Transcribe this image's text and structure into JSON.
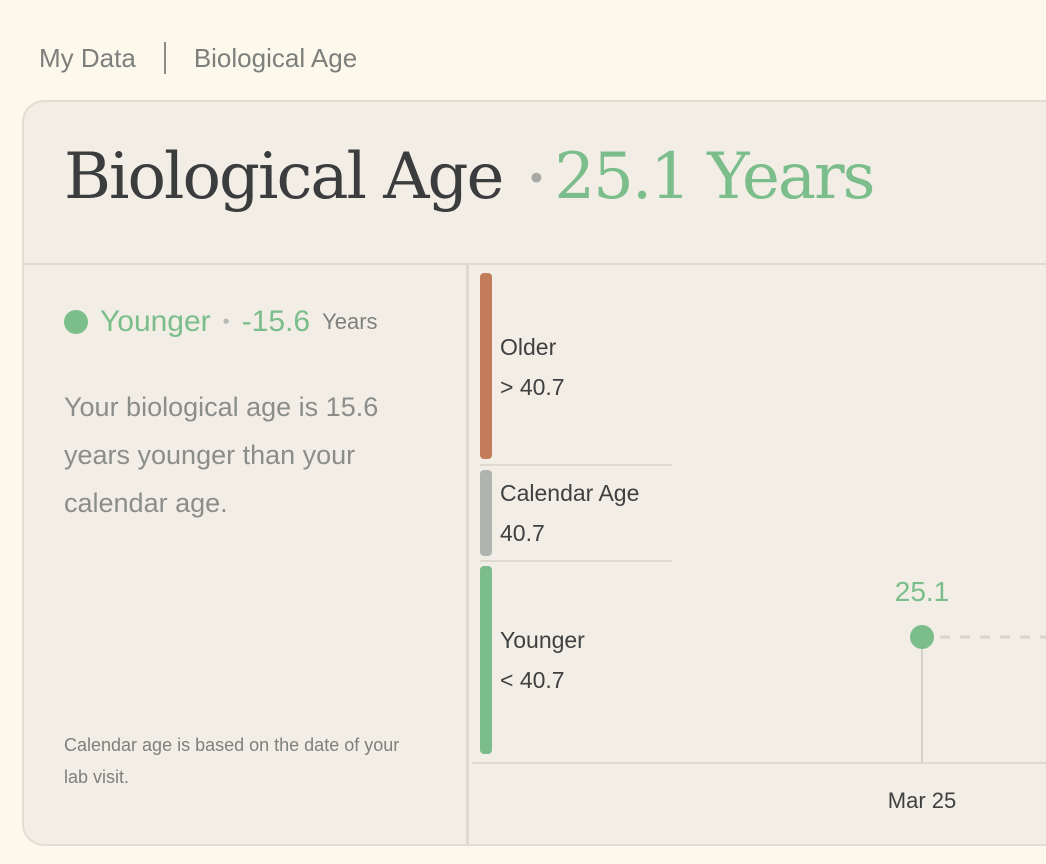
{
  "breadcrumb": {
    "parent": "My Data",
    "current": "Biological Age"
  },
  "header": {
    "title": "Biological Age",
    "separator": "•",
    "value": "25.1 Years"
  },
  "status": {
    "label": "Younger",
    "separator": "•",
    "difference": "-15.6",
    "unit": "Years",
    "color": "#7bbd8b"
  },
  "description": "Your biological age is 15.6 years younger than your calendar age.",
  "footnote": "Calendar age is based on the date of your lab visit.",
  "bands": [
    {
      "name": "Older",
      "range": "> 40.7",
      "color": "#c27c5c"
    },
    {
      "name": "Calendar Age",
      "range": "40.7",
      "color": "#b0b4b1"
    },
    {
      "name": "Younger",
      "range": "< 40.7",
      "color": "#7bbd8b"
    }
  ],
  "chart_data": {
    "type": "scatter",
    "x": [
      "Mar 25"
    ],
    "values": [
      25.1
    ],
    "data_labels": [
      "25.1"
    ],
    "series_color": "#7bbd8b",
    "reference_value": 40.7,
    "xlabel": "",
    "ylabel": ""
  }
}
